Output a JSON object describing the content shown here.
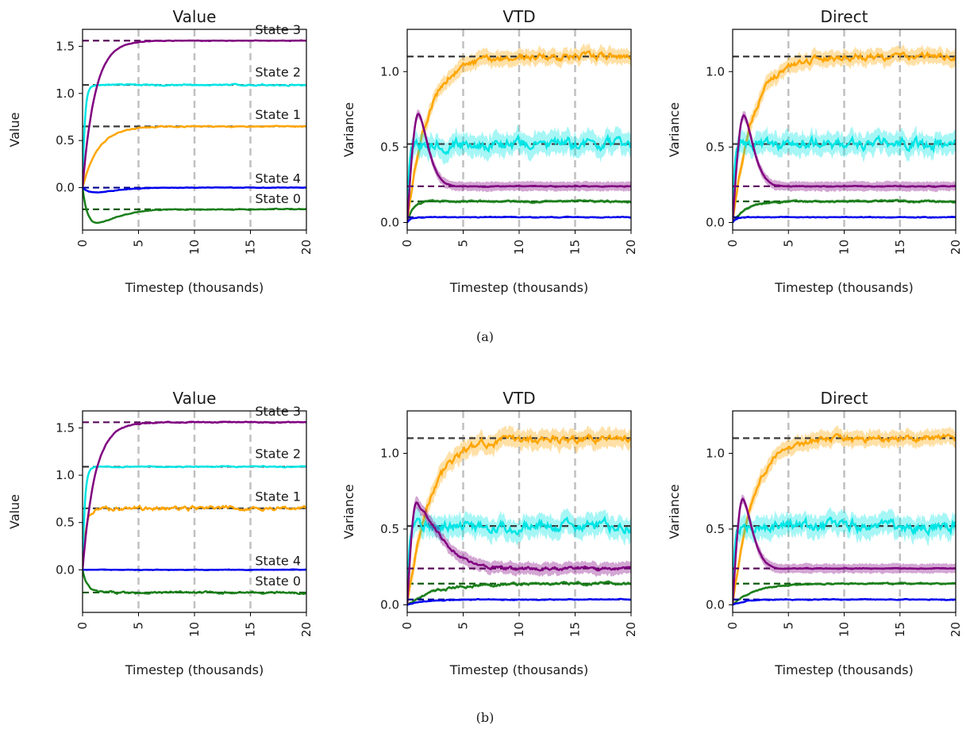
{
  "figure": {
    "captions": [
      "(a)",
      "(b)"
    ],
    "x_axis_label": "Timestep (thousands)",
    "colors": {
      "State 0": "#1a7f1a",
      "State 1": "#ffa500",
      "State 2": "#00e5e5",
      "State 3": "#800080",
      "State 4": "#0000ee",
      "vline": "#c0c0c0"
    }
  },
  "chart_data": [
    {
      "panel": "a-value",
      "row": "(a)",
      "type": "line",
      "title": "Value",
      "xlabel": "Timestep (thousands)",
      "ylabel": "Value",
      "xlim": [
        0,
        20
      ],
      "ylim": [
        -0.45,
        1.68
      ],
      "xticks": [
        "0",
        "5",
        "10",
        "15",
        "20"
      ],
      "yticks": [
        "0.0",
        "0.5",
        "1.0",
        "1.5"
      ],
      "vlines": [
        5,
        10,
        15
      ],
      "series": [
        {
          "name": "State 0",
          "target": -0.23,
          "shape": "dip",
          "dip": -0.38,
          "band": 0,
          "noise": 0.003
        },
        {
          "name": "State 1",
          "target": 0.65,
          "shape": "exp",
          "tau": 1.4,
          "band": 0,
          "noise": 0.004
        },
        {
          "name": "State 2",
          "target": 1.09,
          "shape": "exp",
          "tau": 0.2,
          "band": 0,
          "noise": 0.005
        },
        {
          "name": "State 3",
          "target": 1.56,
          "shape": "exp",
          "tau": 1.1,
          "band": 0,
          "noise": 0.002
        },
        {
          "name": "State 4",
          "target": 0.0,
          "shape": "dip",
          "dip": -0.05,
          "band": 0,
          "noise": 0.002
        }
      ]
    },
    {
      "panel": "a-vtd",
      "row": "(a)",
      "type": "line",
      "title": "VTD",
      "xlabel": "Timestep (thousands)",
      "ylabel": "Variance",
      "xlim": [
        0,
        20
      ],
      "ylim": [
        -0.05,
        1.28
      ],
      "xticks": [
        "0",
        "5",
        "10",
        "15",
        "20"
      ],
      "yticks": [
        "0.0",
        "0.5",
        "1.0"
      ],
      "vlines": [
        5,
        10,
        15
      ],
      "series": [
        {
          "name": "State 0",
          "target": 0.14,
          "shape": "exp",
          "tau": 0.5,
          "band": 0.01,
          "noise": 0.004
        },
        {
          "name": "State 1",
          "target": 1.1,
          "shape": "exp",
          "tau": 1.8,
          "band": 0.05,
          "noise": 0.015
        },
        {
          "name": "State 2",
          "target": 0.52,
          "shape": "exp",
          "tau": 0.15,
          "band": 0.07,
          "noise": 0.025
        },
        {
          "name": "State 3",
          "target": 0.24,
          "shape": "peak",
          "peak": 0.72,
          "tpeak": 1.0,
          "band": 0.03,
          "noise": 0.002
        },
        {
          "name": "State 4",
          "target": 0.035,
          "shape": "exp",
          "tau": 0.3,
          "band": 0.005,
          "noise": 0.002
        }
      ]
    },
    {
      "panel": "a-direct",
      "row": "(a)",
      "type": "line",
      "title": "Direct",
      "xlabel": "Timestep (thousands)",
      "ylabel": "Variance",
      "xlim": [
        0,
        20
      ],
      "ylim": [
        -0.05,
        1.28
      ],
      "xticks": [
        "0",
        "5",
        "10",
        "15",
        "20"
      ],
      "yticks": [
        "0.0",
        "0.5",
        "1.0"
      ],
      "vlines": [
        5,
        10,
        15
      ],
      "series": [
        {
          "name": "State 0",
          "target": 0.14,
          "shape": "exp",
          "tau": 1.2,
          "band": 0.01,
          "noise": 0.004
        },
        {
          "name": "State 1",
          "target": 1.1,
          "shape": "exp",
          "tau": 1.8,
          "band": 0.05,
          "noise": 0.015
        },
        {
          "name": "State 2",
          "target": 0.52,
          "shape": "exp",
          "tau": 0.15,
          "band": 0.07,
          "noise": 0.025
        },
        {
          "name": "State 3",
          "target": 0.24,
          "shape": "peak",
          "peak": 0.71,
          "tpeak": 1.0,
          "band": 0.03,
          "noise": 0.002
        },
        {
          "name": "State 4",
          "target": 0.035,
          "shape": "exp",
          "tau": 0.3,
          "band": 0.005,
          "noise": 0.002
        }
      ]
    },
    {
      "panel": "b-value",
      "row": "(b)",
      "type": "line",
      "title": "Value",
      "xlabel": "Timestep (thousands)",
      "ylabel": "Value",
      "xlim": [
        0,
        20
      ],
      "ylim": [
        -0.45,
        1.68
      ],
      "xticks": [
        "0",
        "5",
        "10",
        "15",
        "20"
      ],
      "yticks": [
        "0.0",
        "0.5",
        "1.0",
        "1.5"
      ],
      "vlines": [
        5,
        10,
        15
      ],
      "series": [
        {
          "name": "State 0",
          "target": -0.24,
          "shape": "exp",
          "tau": 0.4,
          "band": 0,
          "noise": 0.008
        },
        {
          "name": "State 1",
          "target": 0.65,
          "shape": "exp",
          "tau": 0.3,
          "band": 0,
          "noise": 0.015
        },
        {
          "name": "State 2",
          "target": 1.09,
          "shape": "exp",
          "tau": 0.2,
          "band": 0,
          "noise": 0.004
        },
        {
          "name": "State 3",
          "target": 1.56,
          "shape": "exp",
          "tau": 1.1,
          "band": 0,
          "noise": 0.004
        },
        {
          "name": "State 4",
          "target": 0.0,
          "shape": "exp",
          "tau": 0.3,
          "band": 0,
          "noise": 0.002
        }
      ]
    },
    {
      "panel": "b-vtd",
      "row": "(b)",
      "type": "line",
      "title": "VTD",
      "xlabel": "Timestep (thousands)",
      "ylabel": "Variance",
      "xlim": [
        0,
        20
      ],
      "ylim": [
        -0.05,
        1.28
      ],
      "xticks": [
        "0",
        "5",
        "10",
        "15",
        "20"
      ],
      "yticks": [
        "0.0",
        "0.5",
        "1.0"
      ],
      "vlines": [
        5,
        10,
        15
      ],
      "series": [
        {
          "name": "State 0",
          "target": 0.14,
          "shape": "exp",
          "tau": 2.5,
          "band": 0.01,
          "noise": 0.006
        },
        {
          "name": "State 1",
          "target": 1.1,
          "shape": "exp",
          "tau": 2.0,
          "band": 0.06,
          "noise": 0.018
        },
        {
          "name": "State 2",
          "target": 0.52,
          "shape": "exp",
          "tau": 0.15,
          "band": 0.07,
          "noise": 0.025
        },
        {
          "name": "State 3",
          "target": 0.24,
          "shape": "peak",
          "peak": 0.66,
          "tpeak": 0.8,
          "tau": 2.8,
          "band": 0.04,
          "noise": 0.008
        },
        {
          "name": "State 4",
          "target": 0.035,
          "shape": "exp",
          "tau": 1.5,
          "band": 0.005,
          "noise": 0.002
        }
      ]
    },
    {
      "panel": "b-direct",
      "row": "(b)",
      "type": "line",
      "title": "Direct",
      "xlabel": "Timestep (thousands)",
      "ylabel": "Variance",
      "xlim": [
        0,
        20
      ],
      "ylim": [
        -0.05,
        1.28
      ],
      "xticks": [
        "0",
        "5",
        "10",
        "15",
        "20"
      ],
      "yticks": [
        "0.0",
        "0.5",
        "1.0"
      ],
      "vlines": [
        5,
        10,
        15
      ],
      "series": [
        {
          "name": "State 0",
          "target": 0.14,
          "shape": "exp",
          "tau": 2.0,
          "band": 0.008,
          "noise": 0.003
        },
        {
          "name": "State 1",
          "target": 1.1,
          "shape": "exp",
          "tau": 1.8,
          "band": 0.05,
          "noise": 0.015
        },
        {
          "name": "State 2",
          "target": 0.52,
          "shape": "exp",
          "tau": 0.15,
          "band": 0.07,
          "noise": 0.025
        },
        {
          "name": "State 3",
          "target": 0.24,
          "shape": "peak",
          "peak": 0.7,
          "tpeak": 0.9,
          "band": 0.03,
          "noise": 0.002
        },
        {
          "name": "State 4",
          "target": 0.035,
          "shape": "exp",
          "tau": 1.0,
          "band": 0.005,
          "noise": 0.002
        }
      ]
    }
  ]
}
